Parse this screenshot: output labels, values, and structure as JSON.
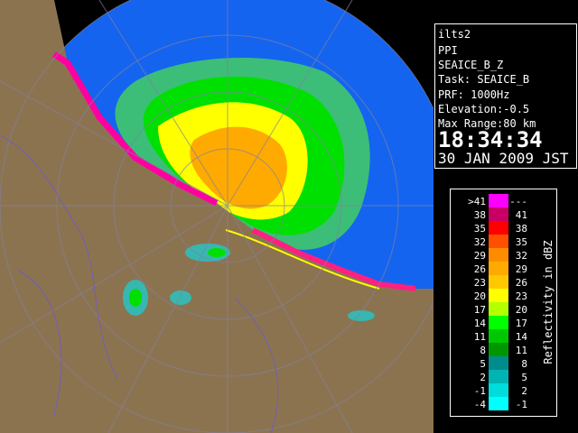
{
  "info": {
    "site": "ilts2",
    "scan": "PPI",
    "product": "SEAICE_B_Z",
    "task": "Task: SEAICE_B",
    "prf": "PRF: 1000Hz",
    "elevation": "Elevation:-0.5",
    "max_range": "Max Range:80 km",
    "time": "18:34:34",
    "date": "30 JAN 2009 JST"
  },
  "legend": {
    "title": "Reflectivity in dBZ",
    "rows": [
      {
        "low": ">41",
        "high": "---",
        "color": "#ff00ff"
      },
      {
        "low": "38",
        "high": "41",
        "color": "#c80064"
      },
      {
        "low": "35",
        "high": "38",
        "color": "#ff0000"
      },
      {
        "low": "32",
        "high": "35",
        "color": "#ff5000"
      },
      {
        "low": "29",
        "high": "32",
        "color": "#ff8c00"
      },
      {
        "low": "26",
        "high": "29",
        "color": "#ffaa00"
      },
      {
        "low": "23",
        "high": "26",
        "color": "#ffc800"
      },
      {
        "low": "20",
        "high": "23",
        "color": "#ffff00"
      },
      {
        "low": "17",
        "high": "20",
        "color": "#b4ff00"
      },
      {
        "low": "14",
        "high": "17",
        "color": "#00ff00"
      },
      {
        "low": "11",
        "high": "14",
        "color": "#00c800"
      },
      {
        "low": "8",
        "high": "11",
        "color": "#009600"
      },
      {
        "low": "5",
        "high": "8",
        "color": "#008c8c"
      },
      {
        "low": "2",
        "high": "5",
        "color": "#00b4b4"
      },
      {
        "low": "-1",
        "high": "2",
        "color": "#00dcdc"
      },
      {
        "low": "-4",
        "high": "-1",
        "color": "#00ffff"
      }
    ]
  }
}
